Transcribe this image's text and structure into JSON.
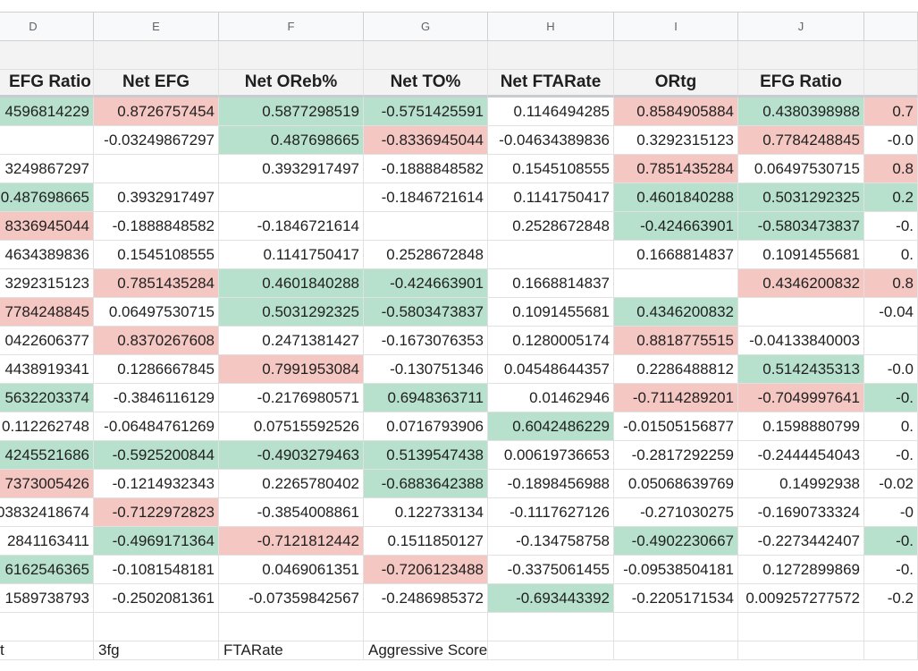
{
  "colors": {
    "positive_fill": "#b7e1cd",
    "negative_fill": "#f4c7c3",
    "header_fill": "#f3f3f3"
  },
  "column_letters": [
    "D",
    "E",
    "F",
    "G",
    "H",
    "I",
    "J",
    ""
  ],
  "header_row": [
    "EFG Ratio",
    "Net EFG",
    "Net OReb%",
    "Net TO%",
    "Net FTARate",
    "ORtg",
    "EFG Ratio",
    ""
  ],
  "rows": [
    [
      "4596814229",
      "0.8726757454",
      "0.5877298519",
      "-0.5751425591",
      "0.1146494285",
      "0.8584905884",
      "0.4380398988",
      "0.7"
    ],
    [
      "",
      "-0.03249867297",
      "0.487698665",
      "-0.8336945044",
      "-0.04634389836",
      "0.3292315123",
      "0.7784248845",
      "-0.0"
    ],
    [
      "3249867297",
      "",
      "0.3932917497",
      "-0.1888848582",
      "0.1545108555",
      "0.7851435284",
      "0.06497530715",
      "0.8"
    ],
    [
      "0.487698665",
      "0.3932917497",
      "",
      "-0.1846721614",
      "0.1141750417",
      "0.4601840288",
      "0.5031292325",
      "0.2"
    ],
    [
      "8336945044",
      "-0.1888848582",
      "-0.1846721614",
      "",
      "0.2528672848",
      "-0.424663901",
      "-0.5803473837",
      "-0."
    ],
    [
      "4634389836",
      "0.1545108555",
      "0.1141750417",
      "0.2528672848",
      "",
      "0.1668814837",
      "0.1091455681",
      "0."
    ],
    [
      "3292315123",
      "0.7851435284",
      "0.4601840288",
      "-0.424663901",
      "0.1668814837",
      "",
      "0.4346200832",
      "0.8"
    ],
    [
      "7784248845",
      "0.06497530715",
      "0.5031292325",
      "-0.5803473837",
      "0.1091455681",
      "0.4346200832",
      "",
      "-0.04"
    ],
    [
      "0422606377",
      "0.8370267608",
      "0.2471381427",
      "-0.1673076353",
      "0.1280005174",
      "0.8818775515",
      "-0.04133840003",
      ""
    ],
    [
      "4438919341",
      "0.1286667845",
      "0.7991953084",
      "-0.130751346",
      "0.04548644357",
      "0.2286488812",
      "0.5142435313",
      "-0.0"
    ],
    [
      "5632203374",
      "-0.3846116129",
      "-0.2176980571",
      "0.6948363711",
      "0.01462946",
      "-0.7114289201",
      "-0.7049997641",
      "-0."
    ],
    [
      "0.112262748",
      "-0.06484761269",
      "0.07515592526",
      "0.0716793906",
      "0.6042486229",
      "-0.01505156877",
      "0.1598880799",
      "0."
    ],
    [
      "4245521686",
      "-0.5925200844",
      "-0.4903279463",
      "0.5139547438",
      "0.00619736653",
      "-0.2817292259",
      "-0.2444454043",
      "-0."
    ],
    [
      "7373005426",
      "-0.1214932343",
      "0.2265780402",
      "-0.6883642388",
      "-0.1898456988",
      "0.05068639769",
      "0.14992938",
      "-0.02"
    ],
    [
      "03832418674",
      "-0.7122972823",
      "-0.3854008861",
      "0.122733134",
      "-0.1117627126",
      "-0.271030275",
      "-0.1690733324",
      "-0"
    ],
    [
      "2841163411",
      "-0.4969171364",
      "-0.7121812442",
      "0.1511850127",
      "-0.134758758",
      "-0.4902230667",
      "-0.2273442407",
      "-0."
    ],
    [
      "6162546365",
      "-0.1081548181",
      "0.0469061351",
      "-0.7206123488",
      "-0.3375061455",
      "-0.09538504181",
      "0.1272899869",
      "-0."
    ],
    [
      "1589738793",
      "-0.2502081361",
      "-0.07359842567",
      "-0.2486985372",
      "-0.693443392",
      "-0.2205171534",
      "0.009257277572",
      "-0.2"
    ]
  ],
  "fills": [
    [
      "green",
      "red",
      "green",
      "green",
      "",
      "red",
      "green",
      "red"
    ],
    [
      "",
      "",
      "green",
      "red",
      "",
      "",
      "red",
      ""
    ],
    [
      "",
      "",
      "",
      "",
      "",
      "red",
      "",
      "red"
    ],
    [
      "green",
      "",
      "",
      "",
      "",
      "green",
      "green",
      "green"
    ],
    [
      "red",
      "",
      "",
      "",
      "",
      "green",
      "green",
      ""
    ],
    [
      "",
      "",
      "",
      "",
      "",
      "",
      "",
      ""
    ],
    [
      "",
      "red",
      "green",
      "green",
      "",
      "",
      "red",
      "red"
    ],
    [
      "red",
      "",
      "green",
      "green",
      "",
      "green",
      "",
      ""
    ],
    [
      "",
      "red",
      "",
      "",
      "",
      "red",
      "",
      ""
    ],
    [
      "",
      "",
      "red",
      "",
      "",
      "",
      "green",
      ""
    ],
    [
      "green",
      "",
      "",
      "green",
      "",
      "red",
      "red",
      "green"
    ],
    [
      "",
      "",
      "",
      "",
      "green",
      "",
      "",
      ""
    ],
    [
      "green",
      "green",
      "green",
      "green",
      "",
      "",
      "",
      ""
    ],
    [
      "red",
      "",
      "",
      "green",
      "",
      "",
      "",
      ""
    ],
    [
      "",
      "red",
      "",
      "",
      "",
      "",
      "",
      ""
    ],
    [
      "",
      "green",
      "red",
      "",
      "",
      "green",
      "",
      "green"
    ],
    [
      "green",
      "",
      "",
      "red",
      "",
      "",
      "",
      ""
    ],
    [
      "",
      "",
      "",
      "",
      "green",
      "",
      "",
      ""
    ]
  ],
  "label_row": [
    "t",
    "3fg",
    "FTARate",
    "Aggressive Score",
    "",
    "",
    "",
    ""
  ]
}
